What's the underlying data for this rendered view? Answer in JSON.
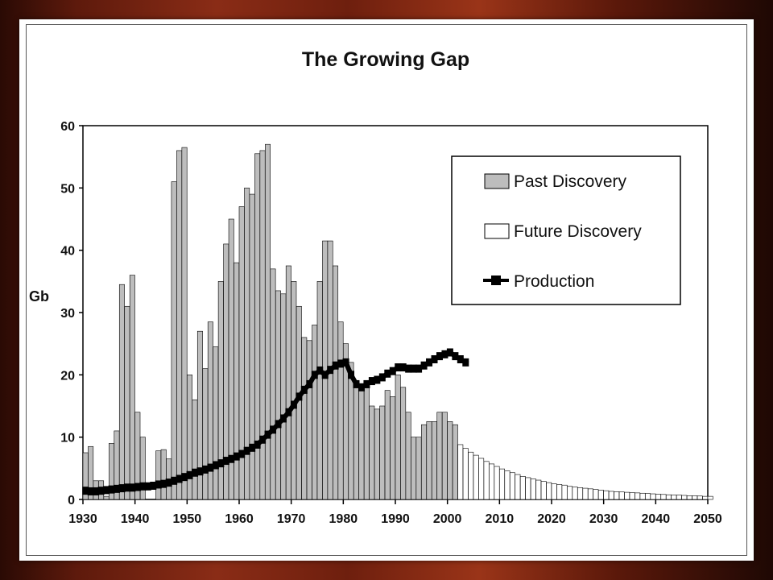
{
  "chart_data": {
    "type": "bar",
    "title": "The Growing Gap",
    "xlabel": "",
    "ylabel": "Gb",
    "xlim": [
      1930,
      2050
    ],
    "ylim": [
      0,
      60
    ],
    "x_ticks": [
      "1930",
      "1940",
      "1950",
      "1960",
      "1970",
      "1980",
      "1990",
      "2000",
      "2010",
      "2020",
      "2030",
      "2040",
      "2050"
    ],
    "y_ticks": [
      "0",
      "10",
      "20",
      "30",
      "40",
      "50",
      "60"
    ],
    "grid": false,
    "legend_position": "top-right",
    "legend": [
      "Past Discovery",
      "Future Discovery",
      "Production"
    ],
    "series": [
      {
        "name": "Past Discovery",
        "kind": "bar",
        "color": "#bdbdbd",
        "x": [
          1930,
          1931,
          1932,
          1933,
          1934,
          1935,
          1936,
          1937,
          1938,
          1939,
          1940,
          1941,
          1942,
          1943,
          1944,
          1945,
          1946,
          1947,
          1948,
          1949,
          1950,
          1951,
          1952,
          1953,
          1954,
          1955,
          1956,
          1957,
          1958,
          1959,
          1960,
          1961,
          1962,
          1963,
          1964,
          1965,
          1966,
          1967,
          1968,
          1969,
          1970,
          1971,
          1972,
          1973,
          1974,
          1975,
          1976,
          1977,
          1978,
          1979,
          1980,
          1981,
          1982,
          1983,
          1984,
          1985,
          1986,
          1987,
          1988,
          1989,
          1990,
          1991,
          1992,
          1993,
          1994,
          1995,
          1996,
          1997,
          1998,
          1999,
          2000,
          2001
        ],
        "values": [
          7.5,
          8.5,
          3,
          3,
          0.5,
          9,
          11,
          34.5,
          31,
          36,
          14,
          10,
          0,
          0,
          7.8,
          8,
          6.5,
          51,
          56,
          56.5,
          20,
          16,
          27,
          21,
          28.5,
          24.5,
          35,
          41,
          45,
          38,
          47,
          50,
          49,
          55.5,
          56,
          57,
          37,
          33.5,
          33,
          37.5,
          35,
          31,
          26,
          25.5,
          28,
          35,
          41.5,
          41.5,
          37.5,
          28.5,
          25,
          22,
          18.5,
          17.5,
          18,
          15,
          14.5,
          15,
          17.5,
          16.5,
          20,
          18,
          14,
          10,
          10,
          12,
          12.5,
          12.5,
          14,
          14,
          12.5,
          12
        ]
      },
      {
        "name": "Future Discovery",
        "kind": "bar",
        "color": "#ffffff",
        "x": [
          2002,
          2003,
          2004,
          2005,
          2006,
          2007,
          2008,
          2009,
          2010,
          2011,
          2012,
          2013,
          2014,
          2015,
          2016,
          2017,
          2018,
          2019,
          2020,
          2021,
          2022,
          2023,
          2024,
          2025,
          2026,
          2027,
          2028,
          2029,
          2030,
          2031,
          2032,
          2033,
          2034,
          2035,
          2036,
          2037,
          2038,
          2039,
          2040,
          2041,
          2042,
          2043,
          2044,
          2045,
          2046,
          2047,
          2048,
          2049,
          2050
        ],
        "values": [
          8.8,
          8.2,
          7.6,
          7.1,
          6.6,
          6.1,
          5.7,
          5.3,
          4.9,
          4.6,
          4.3,
          4.0,
          3.7,
          3.5,
          3.3,
          3.1,
          2.9,
          2.7,
          2.5,
          2.4,
          2.3,
          2.1,
          2.0,
          1.9,
          1.8,
          1.7,
          1.6,
          1.5,
          1.4,
          1.3,
          1.25,
          1.2,
          1.15,
          1.1,
          1.05,
          1.0,
          0.95,
          0.9,
          0.85,
          0.8,
          0.75,
          0.7,
          0.7,
          0.65,
          0.6,
          0.6,
          0.55,
          0.5,
          0.5
        ]
      },
      {
        "name": "Production",
        "kind": "line",
        "color": "#000000",
        "x": [
          1930,
          1931,
          1932,
          1933,
          1934,
          1935,
          1936,
          1937,
          1938,
          1939,
          1940,
          1941,
          1942,
          1943,
          1944,
          1945,
          1946,
          1947,
          1948,
          1949,
          1950,
          1951,
          1952,
          1953,
          1954,
          1955,
          1956,
          1957,
          1958,
          1959,
          1960,
          1961,
          1962,
          1963,
          1964,
          1965,
          1966,
          1967,
          1968,
          1969,
          1970,
          1971,
          1972,
          1973,
          1974,
          1975,
          1976,
          1977,
          1978,
          1979,
          1980,
          1981,
          1982,
          1983,
          1984,
          1985,
          1986,
          1987,
          1988,
          1989,
          1990,
          1991,
          1992,
          1993,
          1994,
          1995,
          1996,
          1997,
          1998,
          1999,
          2000,
          2001,
          2002,
          2003
        ],
        "values": [
          1.4,
          1.3,
          1.3,
          1.4,
          1.5,
          1.6,
          1.7,
          1.8,
          1.9,
          1.9,
          2.0,
          2.1,
          2.1,
          2.2,
          2.4,
          2.5,
          2.7,
          3.0,
          3.3,
          3.6,
          3.9,
          4.3,
          4.5,
          4.8,
          5.1,
          5.5,
          5.8,
          6.2,
          6.5,
          6.9,
          7.3,
          7.8,
          8.3,
          8.8,
          9.6,
          10.4,
          11.2,
          12.1,
          13.0,
          14.0,
          15.2,
          16.5,
          17.6,
          18.5,
          20.0,
          20.7,
          20.0,
          20.8,
          21.5,
          21.8,
          22.0,
          20.0,
          18.5,
          18.0,
          18.5,
          19.0,
          19.2,
          19.6,
          20.2,
          20.6,
          21.2,
          21.2,
          21.0,
          21.0,
          21.0,
          21.5,
          22.0,
          22.5,
          23.0,
          23.3,
          23.6,
          23.0,
          22.5,
          22.0
        ]
      }
    ]
  }
}
